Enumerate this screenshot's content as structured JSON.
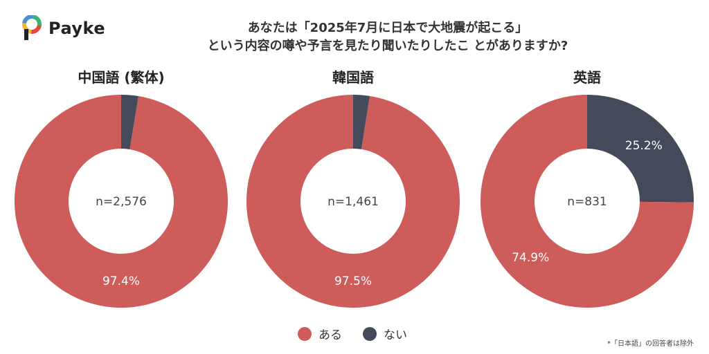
{
  "brand": {
    "name": "Payke"
  },
  "title": {
    "line1": "あなたは「2025年7月に日本で大地震が起こる」",
    "line2": "という内容の噂や予言を見たり聞いたりしたこ とがありますか?"
  },
  "colors": {
    "aru": "#cd5c5a",
    "nai": "#454a5b",
    "hole": "#ffffff"
  },
  "legend": [
    {
      "label": "ある",
      "color": "#cd5c5a"
    },
    {
      "label": "ない",
      "color": "#454a5b"
    }
  ],
  "footnote": "*「日本語」の回答者は除外",
  "chart_data": [
    {
      "type": "pie",
      "title": "中国語 (繁体)",
      "n_label": "n=2,576",
      "categories": [
        "ある",
        "ない"
      ],
      "values": [
        97.4,
        2.6
      ],
      "value_labels": [
        "97.4%",
        ""
      ]
    },
    {
      "type": "pie",
      "title": "韓国語",
      "n_label": "n=1,461",
      "categories": [
        "ある",
        "ない"
      ],
      "values": [
        97.5,
        2.5
      ],
      "value_labels": [
        "97.5%",
        ""
      ]
    },
    {
      "type": "pie",
      "title": "英語",
      "n_label": "n=831",
      "categories": [
        "ある",
        "ない"
      ],
      "values": [
        74.9,
        25.2
      ],
      "value_labels": [
        "74.9%",
        "25.2%"
      ]
    }
  ]
}
